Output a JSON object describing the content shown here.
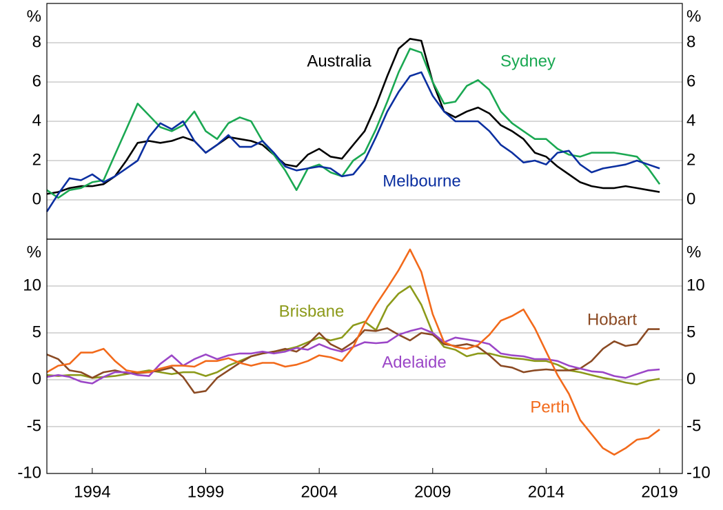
{
  "chart_data": [
    {
      "type": "line",
      "ylabel": "%",
      "xlim": [
        1992,
        2020
      ],
      "ylim": [
        -2,
        10
      ],
      "yticks": [
        0,
        2,
        4,
        6,
        8
      ],
      "grid": true,
      "x": [
        1992,
        1992.5,
        1993,
        1993.5,
        1994,
        1994.5,
        1995,
        1995.5,
        1996,
        1996.5,
        1997,
        1997.5,
        1998,
        1998.5,
        1999,
        1999.5,
        2000,
        2000.5,
        2001,
        2001.5,
        2002,
        2002.5,
        2003,
        2003.5,
        2004,
        2004.5,
        2005,
        2005.5,
        2006,
        2006.5,
        2007,
        2007.5,
        2008,
        2008.5,
        2009,
        2009.5,
        2010,
        2010.5,
        2011,
        2011.5,
        2012,
        2012.5,
        2013,
        2013.5,
        2014,
        2014.5,
        2015,
        2015.5,
        2016,
        2016.5,
        2017,
        2017.5,
        2018,
        2018.5,
        2019
      ],
      "series": [
        {
          "name": "Australia",
          "color": "#000000",
          "values": [
            0.3,
            0.4,
            0.6,
            0.7,
            0.7,
            0.8,
            1.2,
            2.0,
            2.9,
            3.0,
            2.9,
            3.0,
            3.2,
            3.0,
            2.4,
            2.8,
            3.2,
            3.1,
            3.0,
            2.8,
            2.3,
            1.8,
            1.7,
            2.3,
            2.6,
            2.2,
            2.1,
            2.8,
            3.5,
            4.8,
            6.3,
            7.7,
            8.2,
            8.1,
            6.0,
            4.5,
            4.2,
            4.5,
            4.7,
            4.4,
            3.8,
            3.5,
            3.1,
            2.4,
            2.2,
            1.7,
            1.3,
            0.9,
            0.7,
            0.6,
            0.6,
            0.7,
            0.6,
            0.5,
            0.4
          ]
        },
        {
          "name": "Sydney",
          "color": "#1aa852",
          "values": [
            0.5,
            0.1,
            0.5,
            0.6,
            0.9,
            1.0,
            2.3,
            3.6,
            4.9,
            4.3,
            3.7,
            3.5,
            3.8,
            4.5,
            3.5,
            3.1,
            3.9,
            4.2,
            4.0,
            3.0,
            2.3,
            1.5,
            0.5,
            1.6,
            1.8,
            1.4,
            1.2,
            2.0,
            2.4,
            3.6,
            5.0,
            6.5,
            7.7,
            7.5,
            6.0,
            4.9,
            5.0,
            5.8,
            6.1,
            5.6,
            4.5,
            3.9,
            3.5,
            3.1,
            3.1,
            2.6,
            2.3,
            2.2,
            2.4,
            2.4,
            2.4,
            2.3,
            2.2,
            1.6,
            0.8
          ]
        },
        {
          "name": "Melbourne",
          "color": "#0b2fa0",
          "values": [
            -0.6,
            0.3,
            1.1,
            1.0,
            1.3,
            0.9,
            1.2,
            1.6,
            2.0,
            3.2,
            3.9,
            3.6,
            4.0,
            3.0,
            2.4,
            2.8,
            3.3,
            2.7,
            2.7,
            3.0,
            2.4,
            1.7,
            1.5,
            1.6,
            1.7,
            1.6,
            1.2,
            1.3,
            2.0,
            3.2,
            4.5,
            5.5,
            6.3,
            6.5,
            5.3,
            4.5,
            4.0,
            4.0,
            4.0,
            3.5,
            2.8,
            2.4,
            1.9,
            2.0,
            1.8,
            2.4,
            2.5,
            1.8,
            1.4,
            1.6,
            1.7,
            1.8,
            2.0,
            1.8,
            1.6
          ]
        }
      ]
    },
    {
      "type": "line",
      "ylabel": "%",
      "xlim": [
        1992,
        2020
      ],
      "xticks": [
        1994,
        1999,
        2004,
        2009,
        2014,
        2019
      ],
      "ylim": [
        -10,
        15
      ],
      "yticks": [
        -10,
        -5,
        0,
        5,
        10
      ],
      "grid": true,
      "x": [
        1992,
        1992.5,
        1993,
        1993.5,
        1994,
        1994.5,
        1995,
        1995.5,
        1996,
        1996.5,
        1997,
        1997.5,
        1998,
        1998.5,
        1999,
        1999.5,
        2000,
        2000.5,
        2001,
        2001.5,
        2002,
        2002.5,
        2003,
        2003.5,
        2004,
        2004.5,
        2005,
        2005.5,
        2006,
        2006.5,
        2007,
        2007.5,
        2008,
        2008.5,
        2009,
        2009.5,
        2010,
        2010.5,
        2011,
        2011.5,
        2012,
        2012.5,
        2013,
        2013.5,
        2014,
        2014.5,
        2015,
        2015.5,
        2016,
        2016.5,
        2017,
        2017.5,
        2018,
        2018.5,
        2019
      ],
      "series": [
        {
          "name": "Brisbane",
          "color": "#8c9a1a",
          "values": [
            0.5,
            0.4,
            0.5,
            0.5,
            0.2,
            0.3,
            0.4,
            0.6,
            0.8,
            1.0,
            0.8,
            0.6,
            0.8,
            0.8,
            0.4,
            0.8,
            1.5,
            2.0,
            2.5,
            2.8,
            3.0,
            3.2,
            3.5,
            4.0,
            4.5,
            4.2,
            4.5,
            5.8,
            6.2,
            5.3,
            7.8,
            9.2,
            10.0,
            8.0,
            5.0,
            3.5,
            3.2,
            2.5,
            2.8,
            2.8,
            2.5,
            2.3,
            2.2,
            2.0,
            2.0,
            1.6,
            1.0,
            0.8,
            0.5,
            0.2,
            0.0,
            -0.3,
            -0.5,
            -0.1,
            0.1
          ]
        },
        {
          "name": "Hobart",
          "color": "#8b4a23",
          "values": [
            2.7,
            2.2,
            1.0,
            0.8,
            0.2,
            0.8,
            1.0,
            0.7,
            0.7,
            0.8,
            1.0,
            1.3,
            0.3,
            -1.4,
            -1.2,
            0.2,
            1.0,
            1.8,
            2.5,
            2.8,
            3.0,
            3.3,
            3.0,
            3.8,
            5.0,
            3.8,
            3.2,
            4.0,
            5.3,
            5.2,
            5.5,
            4.8,
            4.2,
            5.0,
            4.8,
            3.8,
            3.6,
            3.8,
            3.5,
            2.6,
            1.5,
            1.3,
            0.8,
            1.0,
            1.1,
            1.0,
            1.0,
            1.2,
            2.0,
            3.3,
            4.1,
            3.6,
            3.8,
            5.4,
            5.4
          ]
        },
        {
          "name": "Adelaide",
          "color": "#9b46c7",
          "values": [
            0.3,
            0.5,
            0.3,
            -0.2,
            -0.4,
            0.3,
            0.8,
            0.8,
            0.5,
            0.4,
            1.7,
            2.6,
            1.5,
            2.2,
            2.7,
            2.2,
            2.6,
            2.8,
            2.8,
            3.0,
            2.8,
            3.0,
            3.4,
            3.2,
            3.8,
            3.3,
            3.0,
            3.5,
            4.0,
            3.9,
            4.0,
            4.8,
            5.2,
            5.5,
            5.0,
            4.0,
            4.5,
            4.3,
            4.1,
            3.8,
            2.8,
            2.6,
            2.5,
            2.2,
            2.2,
            2.0,
            1.5,
            1.2,
            0.9,
            0.8,
            0.4,
            0.2,
            0.6,
            1.0,
            1.1
          ]
        },
        {
          "name": "Perth",
          "color": "#f26a1b",
          "values": [
            0.8,
            1.5,
            1.7,
            2.9,
            2.9,
            3.3,
            2.0,
            1.0,
            0.8,
            0.8,
            1.2,
            1.5,
            1.5,
            1.4,
            2.0,
            2.0,
            2.3,
            1.8,
            1.5,
            1.8,
            1.8,
            1.4,
            1.6,
            2.0,
            2.6,
            2.4,
            2.0,
            3.5,
            6.0,
            8.0,
            9.8,
            11.7,
            13.9,
            11.5,
            7.0,
            4.0,
            3.5,
            3.3,
            3.7,
            4.8,
            6.3,
            6.8,
            7.5,
            5.5,
            3.0,
            0.5,
            -1.5,
            -4.3,
            -5.8,
            -7.3,
            -8.0,
            -7.3,
            -6.4,
            -6.2,
            -5.3
          ]
        }
      ]
    }
  ]
}
